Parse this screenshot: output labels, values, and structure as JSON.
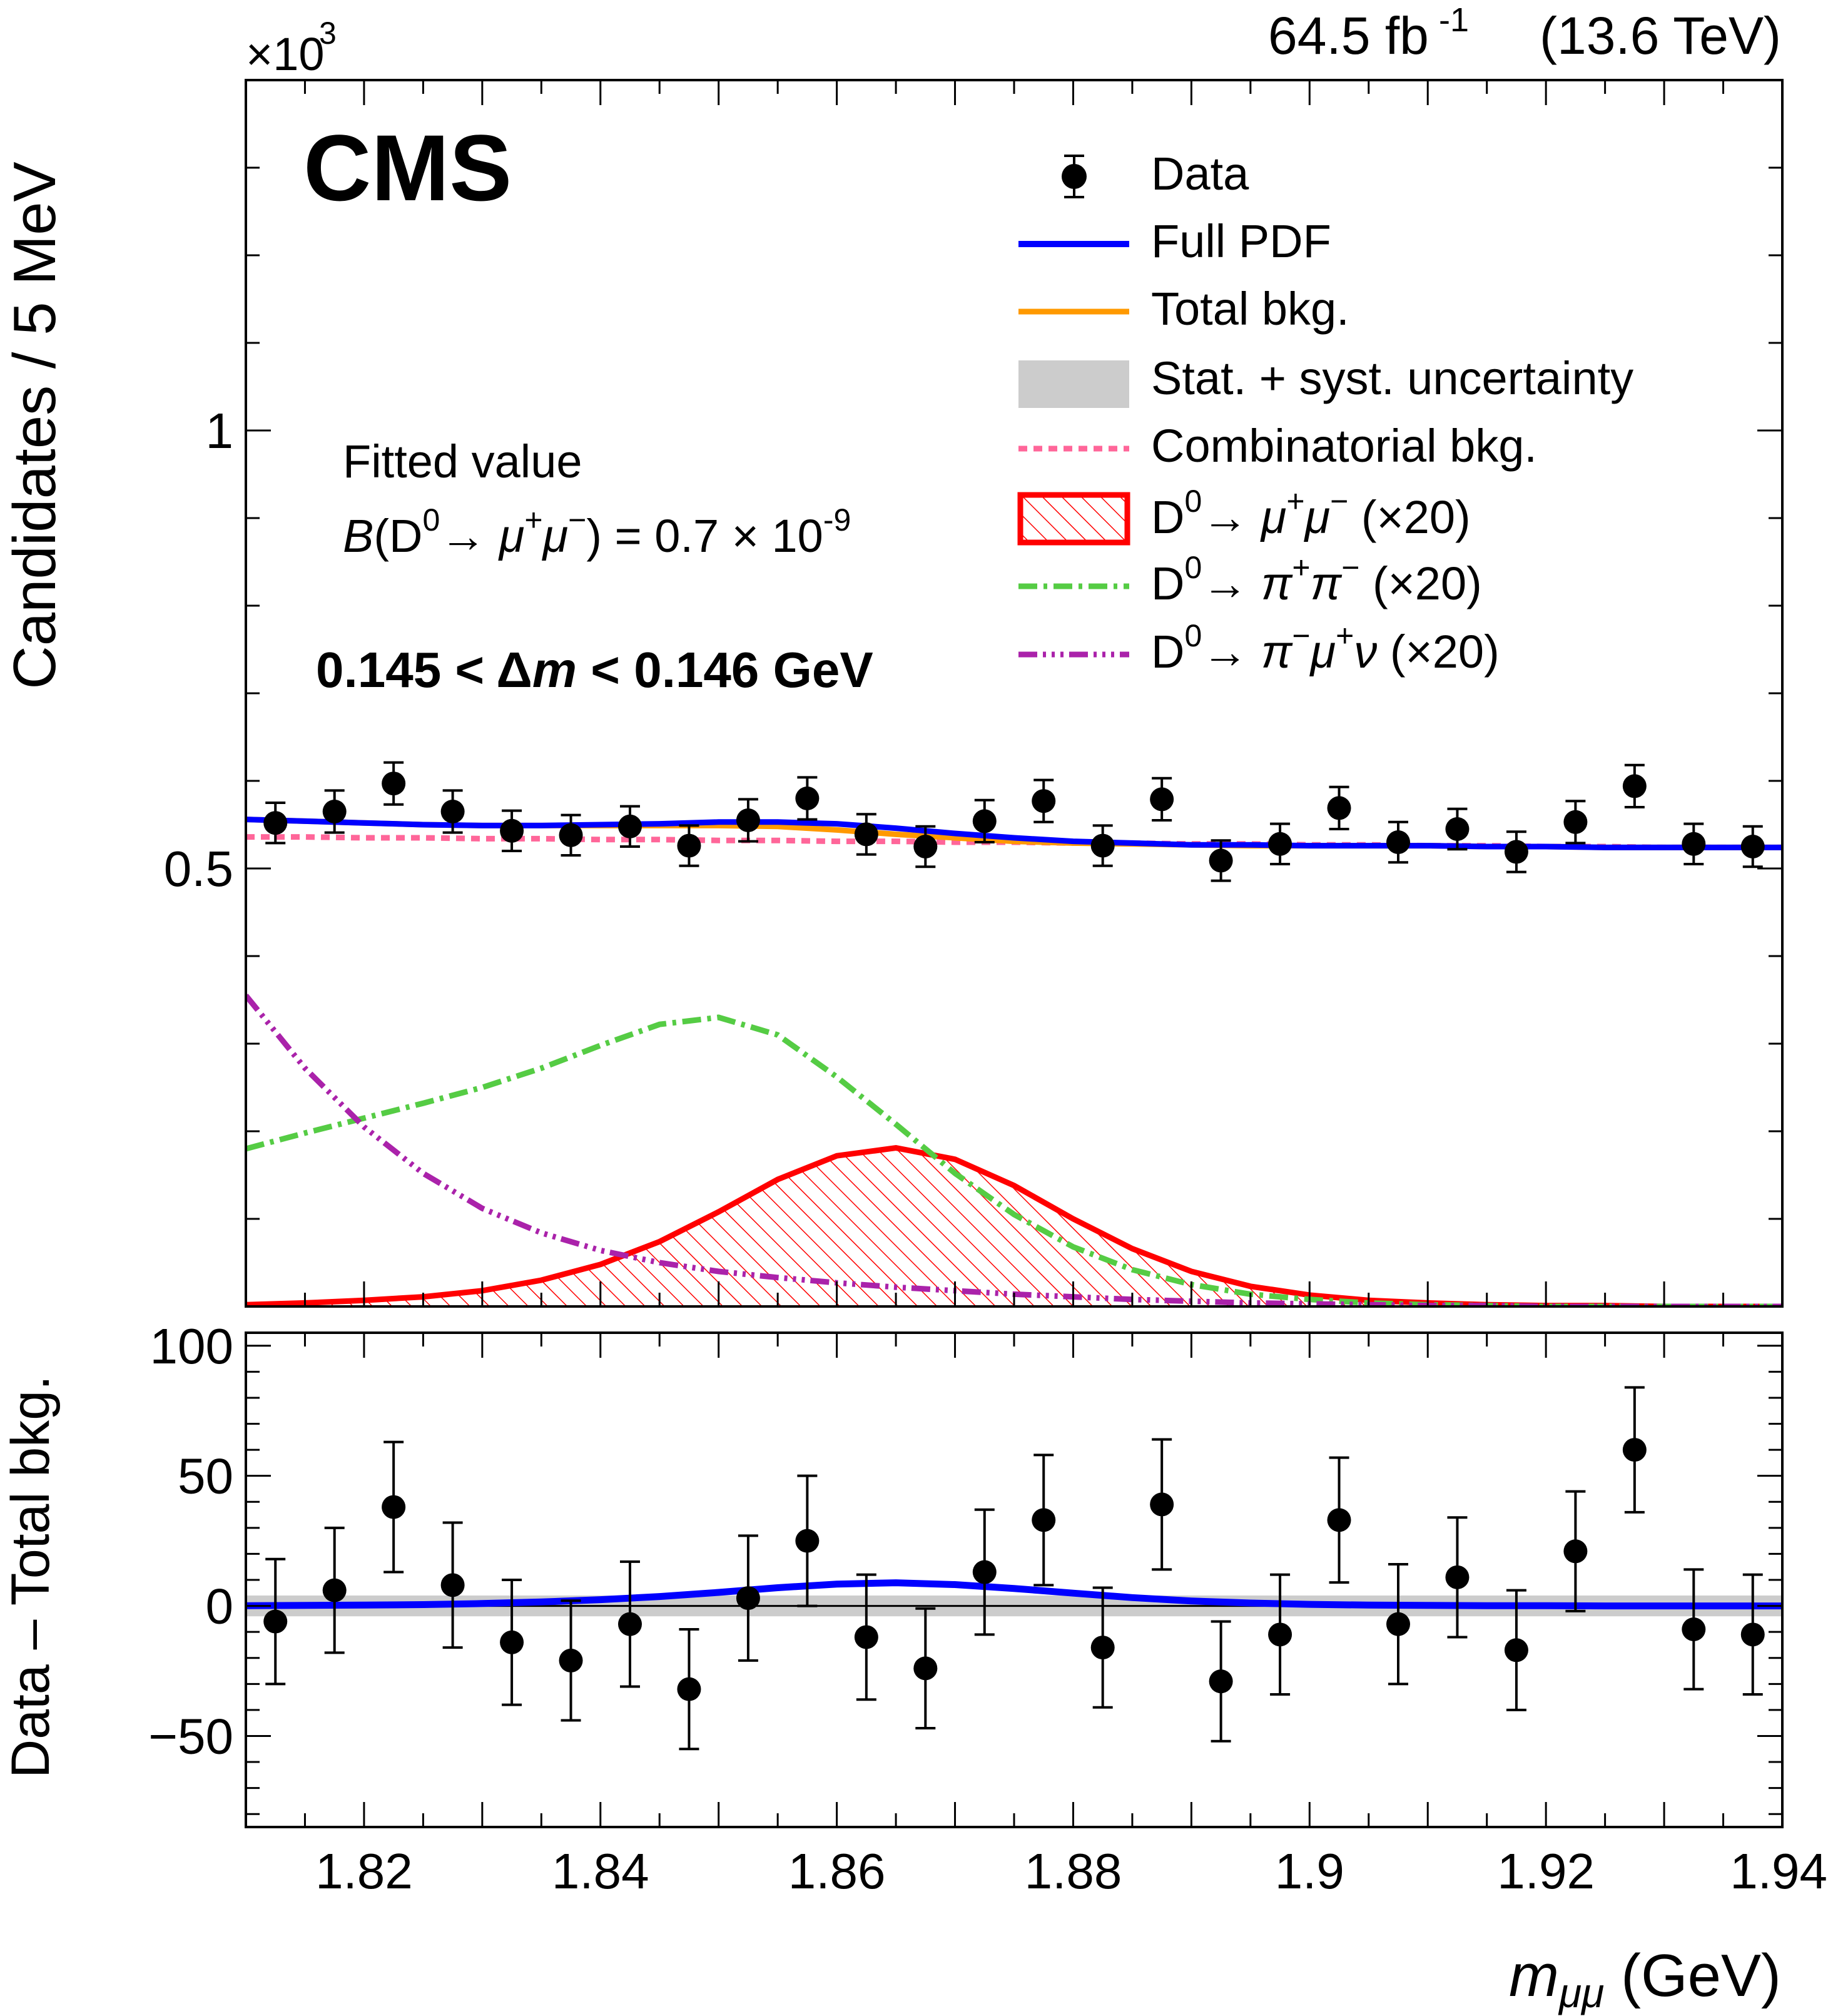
{
  "header": {
    "lumi_value": "64.5 fb",
    "lumi_exp": "-1",
    "energy": "(13.6 TeV)",
    "cms_label": "CMS",
    "exponent_prefix": "×10",
    "exponent_power": "3"
  },
  "annotations": {
    "fitted_title": "Fitted value",
    "fitted_B": "B",
    "fitted_open": "(D",
    "fitted_d_sup": "0",
    "fitted_arrow": "→ ",
    "fitted_mu1": "μ",
    "fitted_plus": "+",
    "fitted_mu2": "μ",
    "fitted_minus": "−",
    "fitted_rest": ") = 0.7 × 10",
    "fitted_power": "-9",
    "dm_left": "0.145 < ",
    "dm_delta": "Δ",
    "dm_m": "m",
    "dm_right": " < 0.146 GeV"
  },
  "legend": {
    "data": "Data",
    "full_pdf": "Full PDF",
    "total_bkg": "Total bkg.",
    "uncertainty": "Stat. + syst. uncertainty",
    "combinatorial": "Combinatorial bkg.",
    "mumu_prefix": "D",
    "mumu_sup": "0",
    "mumu_arrow": "→ ",
    "mumu_p1": "μ",
    "mumu_s1": "+",
    "mumu_p2": "μ",
    "mumu_s2": "−",
    "mumu_scale": " (×20)",
    "pipi_prefix": "D",
    "pipi_sup": "0",
    "pipi_arrow": "→ ",
    "pipi_p1": "π",
    "pipi_s1": "+",
    "pipi_p2": "π",
    "pipi_s2": "−",
    "pipi_scale": " (×20)",
    "pimunu_prefix": "D",
    "pimunu_sup": "0",
    "pimunu_arrow": "→ ",
    "pimunu_p1": "π",
    "pimunu_s1": "−",
    "pimunu_p2": "μ",
    "pimunu_s2": "+",
    "pimunu_p3": "ν",
    "pimunu_scale": " (×20)"
  },
  "colors": {
    "full_pdf": "#0000ff",
    "total_bkg": "#ff9900",
    "uncertainty": "#cccccc",
    "combinatorial": "#ff6699",
    "mumu": "#ff0000",
    "pipi": "#55cc44",
    "pimunu": "#aa22aa",
    "data": "#000000"
  },
  "chart_data": [
    {
      "type": "scatter",
      "panel": "main",
      "ylabel": "Candidates / 5 MeV",
      "xlim": [
        1.81,
        1.94
      ],
      "ylim": [
        0,
        1.4
      ],
      "y_ticks": [
        0.5,
        1
      ],
      "y_tick_labels": [
        "0.5",
        "1"
      ],
      "y_multiplier": "×10^3",
      "grid": false,
      "legend_position": "top-right",
      "data_points": {
        "x": [
          1.8125,
          1.8175,
          1.8225,
          1.8275,
          1.8325,
          1.8375,
          1.8425,
          1.8475,
          1.8525,
          1.8575,
          1.8625,
          1.8675,
          1.8725,
          1.8775,
          1.8825,
          1.8875,
          1.8925,
          1.8975,
          1.9025,
          1.9075,
          1.9125,
          1.9175,
          1.9225,
          1.9275,
          1.9325,
          1.9375
        ],
        "y": [
          0.552,
          0.565,
          0.597,
          0.565,
          0.543,
          0.538,
          0.548,
          0.526,
          0.555,
          0.58,
          0.539,
          0.525,
          0.554,
          0.577,
          0.526,
          0.579,
          0.509,
          0.528,
          0.569,
          0.53,
          0.545,
          0.519,
          0.553,
          0.594,
          0.528,
          0.525
        ],
        "yerr": [
          0.023,
          0.024,
          0.024,
          0.024,
          0.023,
          0.023,
          0.023,
          0.023,
          0.024,
          0.024,
          0.023,
          0.023,
          0.024,
          0.024,
          0.023,
          0.024,
          0.023,
          0.023,
          0.024,
          0.023,
          0.023,
          0.023,
          0.024,
          0.024,
          0.023,
          0.023
        ]
      },
      "curves": {
        "x": [
          1.81,
          1.815,
          1.82,
          1.825,
          1.83,
          1.835,
          1.84,
          1.845,
          1.85,
          1.855,
          1.86,
          1.865,
          1.87,
          1.875,
          1.88,
          1.885,
          1.89,
          1.895,
          1.9,
          1.905,
          1.91,
          1.915,
          1.92,
          1.925,
          1.93,
          1.935,
          1.94
        ],
        "full_pdf": [
          0.556,
          0.554,
          0.552,
          0.55,
          0.549,
          0.549,
          0.55,
          0.551,
          0.553,
          0.553,
          0.551,
          0.546,
          0.54,
          0.535,
          0.531,
          0.529,
          0.527,
          0.527,
          0.526,
          0.526,
          0.526,
          0.525,
          0.525,
          0.524,
          0.524,
          0.524,
          0.524
        ],
        "total_bkg": [
          0.556,
          0.554,
          0.552,
          0.55,
          0.549,
          0.549,
          0.549,
          0.549,
          0.549,
          0.548,
          0.544,
          0.539,
          0.535,
          0.531,
          0.529,
          0.528,
          0.527,
          0.526,
          0.526,
          0.526,
          0.526,
          0.525,
          0.525,
          0.524,
          0.524,
          0.524,
          0.524
        ],
        "combinatorial": [
          0.536,
          0.536,
          0.535,
          0.535,
          0.534,
          0.534,
          0.533,
          0.533,
          0.532,
          0.532,
          0.531,
          0.531,
          0.53,
          0.53,
          0.529,
          0.529,
          0.528,
          0.528,
          0.527,
          0.527,
          0.526,
          0.526,
          0.525,
          0.525,
          0.524,
          0.524,
          0.524
        ],
        "mumu_x20": [
          0.002,
          0.004,
          0.007,
          0.011,
          0.018,
          0.03,
          0.048,
          0.074,
          0.108,
          0.145,
          0.172,
          0.181,
          0.168,
          0.138,
          0.1,
          0.066,
          0.04,
          0.023,
          0.013,
          0.007,
          0.004,
          0.002,
          0.001,
          0.001,
          0.0,
          0.0,
          0.0
        ],
        "pipi_x20": [
          0.18,
          0.198,
          0.215,
          0.232,
          0.25,
          0.272,
          0.298,
          0.322,
          0.33,
          0.31,
          0.262,
          0.208,
          0.152,
          0.105,
          0.068,
          0.042,
          0.025,
          0.014,
          0.008,
          0.004,
          0.002,
          0.001,
          0.0,
          0.0,
          0.0,
          0.0,
          0.0
        ],
        "pimunu_x20": [
          0.355,
          0.272,
          0.205,
          0.152,
          0.112,
          0.084,
          0.064,
          0.05,
          0.04,
          0.033,
          0.027,
          0.022,
          0.018,
          0.014,
          0.011,
          0.008,
          0.006,
          0.004,
          0.003,
          0.002,
          0.001,
          0.001,
          0.0,
          0.0,
          0.0,
          0.0,
          0.0
        ]
      },
      "series": [
        {
          "name": "Data"
        },
        {
          "name": "Full PDF"
        },
        {
          "name": "Total bkg."
        },
        {
          "name": "Stat. + syst. uncertainty"
        },
        {
          "name": "Combinatorial bkg."
        },
        {
          "name": "D0→ μ+μ− (×20)"
        },
        {
          "name": "D0→ π+π− (×20)"
        },
        {
          "name": "D0→ π−μ+ν (×20)"
        }
      ]
    },
    {
      "type": "scatter",
      "panel": "ratio",
      "ylabel": "Data – Total bkg.",
      "xlabel": "m_μμ (GeV)",
      "xlim": [
        1.81,
        1.94
      ],
      "ylim": [
        -85,
        105
      ],
      "x_ticks": [
        1.82,
        1.84,
        1.86,
        1.88,
        1.9,
        1.92,
        1.94
      ],
      "x_tick_labels": [
        "1.82",
        "1.84",
        "1.86",
        "1.88",
        "1.9",
        "1.92",
        "1.94"
      ],
      "y_ticks": [
        -50,
        0,
        50,
        100
      ],
      "y_tick_labels": [
        "−50",
        "0",
        "50",
        "100"
      ],
      "data_points": {
        "x": [
          1.8125,
          1.8175,
          1.8225,
          1.8275,
          1.8325,
          1.8375,
          1.8425,
          1.8475,
          1.8525,
          1.8575,
          1.8625,
          1.8675,
          1.8725,
          1.8775,
          1.8825,
          1.8875,
          1.8925,
          1.8975,
          1.9025,
          1.9075,
          1.9125,
          1.9175,
          1.9225,
          1.9275,
          1.9325,
          1.9375
        ],
        "y": [
          -6,
          6,
          38,
          8,
          -14,
          -21,
          -7,
          -32,
          3,
          25,
          -12,
          -24,
          13,
          33,
          -16,
          39,
          -29,
          -11,
          33,
          -7,
          11,
          -17,
          21,
          60,
          -9,
          -11
        ],
        "yerr": [
          24,
          24,
          25,
          24,
          24,
          23,
          24,
          23,
          24,
          25,
          24,
          23,
          24,
          25,
          23,
          25,
          23,
          23,
          24,
          23,
          23,
          23,
          23,
          24,
          23,
          23
        ]
      },
      "fit_curve": {
        "x": [
          1.81,
          1.815,
          1.82,
          1.825,
          1.83,
          1.835,
          1.84,
          1.845,
          1.85,
          1.855,
          1.86,
          1.865,
          1.87,
          1.875,
          1.88,
          1.885,
          1.89,
          1.895,
          1.9,
          1.905,
          1.91,
          1.915,
          1.92,
          1.925,
          1.93,
          1.935,
          1.94
        ],
        "y": [
          0.1,
          0.2,
          0.3,
          0.5,
          0.9,
          1.5,
          2.4,
          3.6,
          5.2,
          7.0,
          8.4,
          8.9,
          8.2,
          6.7,
          4.9,
          3.2,
          1.9,
          1.1,
          0.6,
          0.3,
          0.2,
          0.1,
          0.1,
          0.0,
          0.0,
          0.0,
          0.0
        ]
      },
      "uncertainty_band": {
        "low": -4,
        "high": 4
      }
    }
  ]
}
